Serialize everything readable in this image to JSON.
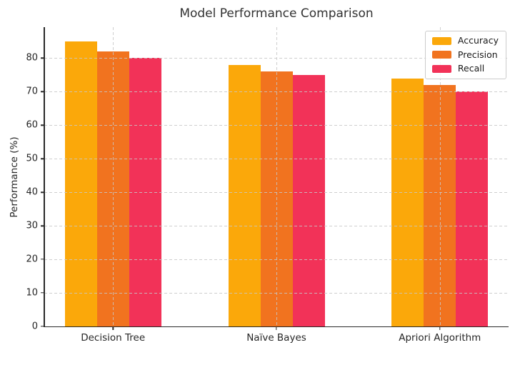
{
  "chart_data": {
    "type": "bar",
    "title": "Model Performance Comparison",
    "xlabel": "",
    "ylabel": "Performance (%)",
    "categories": [
      "Decision Tree",
      "Naïve Bayes",
      "Apriori Algorithm"
    ],
    "series": [
      {
        "name": "Accuracy",
        "color": "#FBA80A",
        "values": [
          85,
          78,
          74
        ]
      },
      {
        "name": "Precision",
        "color": "#F1731F",
        "values": [
          82,
          76,
          72
        ]
      },
      {
        "name": "Recall",
        "color": "#F23258",
        "values": [
          80,
          75,
          70
        ]
      }
    ],
    "ylim": [
      0,
      89.25
    ],
    "yticks": [
      0,
      10,
      20,
      30,
      40,
      50,
      60,
      70,
      80
    ],
    "grid": true,
    "grid_style": "dashed",
    "legend_position": "upper right",
    "spine_color": "#2a2a2a",
    "text_color": "#262626",
    "title_color": "#333333",
    "background_color": "#ffffff"
  }
}
